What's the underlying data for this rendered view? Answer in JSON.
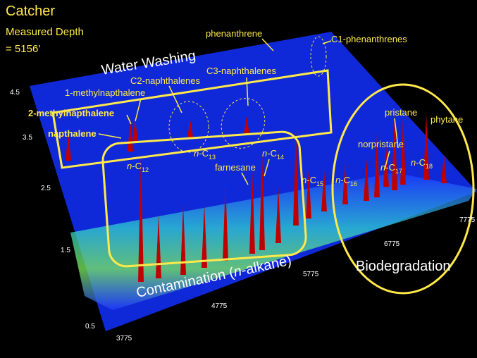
{
  "header": {
    "title": "Catcher",
    "depth_label": "Measured Depth",
    "depth_value": "= 5156’"
  },
  "annotations": {
    "water_washing": "Water Washing",
    "phenanthrene": "phenanthrene",
    "c1_phenanthrenes": "C1-phenanthrenes",
    "c2_naphthalenes": "C2-naphthalenes",
    "c3_naphthalenes": "C3-naphthalenes",
    "methylnapthalene_1": "1-methylnapthalene",
    "methylnapthalene_2": "2-methylnapthalene",
    "napthalene": "napthalene",
    "farnesane": "farnesane",
    "norpristane": "norpristane",
    "pristane": "pristane",
    "phytane": "phytane",
    "biodegradation": "Biodegradation",
    "contamination": {
      "text": "Contamination (",
      "italic": "n",
      "rest": "-alkane)"
    },
    "alkanes": [
      {
        "italic": "n",
        "text": "-C",
        "sub": "12"
      },
      {
        "italic": "n",
        "text": "-C",
        "sub": "13"
      },
      {
        "italic": "n",
        "text": "-C",
        "sub": "14"
      },
      {
        "italic": "n",
        "text": "-C",
        "sub": "15"
      },
      {
        "italic": "n",
        "text": "-C",
        "sub": "16"
      },
      {
        "italic": "n",
        "text": "-C",
        "sub": "17"
      },
      {
        "italic": "n",
        "text": "-C",
        "sub": "18"
      }
    ]
  },
  "axes": {
    "left_ticks": [
      "4.5",
      "3.5",
      "2.5",
      "1.5",
      "0.5"
    ],
    "bottom_ticks": [
      "3775",
      "4775",
      "5775",
      "6775",
      "7775"
    ]
  }
}
